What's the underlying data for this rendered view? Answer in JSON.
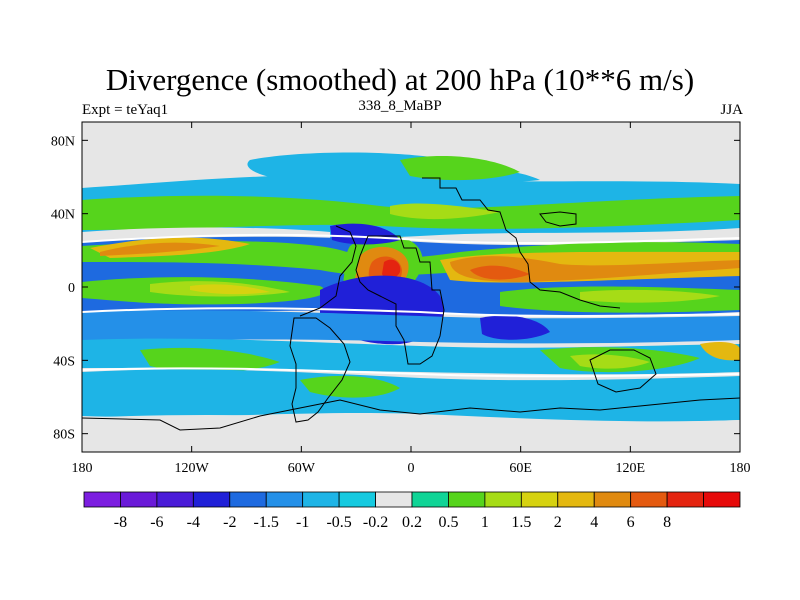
{
  "chart_data": {
    "type": "heatmap",
    "title": "Divergence (smoothed) at 200 hPa (10**6 m/s)",
    "left_subtitle": "Expt = teYaq1",
    "center_subtitle": "338_8_MaBP",
    "right_subtitle": "JJA",
    "x_ticks": [
      {
        "value": -180,
        "label": "180"
      },
      {
        "value": -120,
        "label": "120W"
      },
      {
        "value": -60,
        "label": "60W"
      },
      {
        "value": 0,
        "label": "0"
      },
      {
        "value": 60,
        "label": "60E"
      },
      {
        "value": 120,
        "label": "120E"
      },
      {
        "value": 180,
        "label": "180"
      }
    ],
    "y_ticks": [
      {
        "value": 80,
        "label": "80N"
      },
      {
        "value": 40,
        "label": "40N"
      },
      {
        "value": 0,
        "label": "0"
      },
      {
        "value": -40,
        "label": "40S"
      },
      {
        "value": -80,
        "label": "80S"
      }
    ],
    "xlim": [
      -180,
      180
    ],
    "ylim": [
      -90,
      90
    ],
    "colorbar": {
      "colors": [
        "#7c1ee0",
        "#6a1ad8",
        "#4a1bd8",
        "#2020d8",
        "#1e6ae0",
        "#2490e8",
        "#1eb4e6",
        "#16cae0",
        "#e6e6e6",
        "#10d496",
        "#56d41c",
        "#a6dc16",
        "#d6d210",
        "#e4b810",
        "#e08a10",
        "#e45a10",
        "#e42410",
        "#e60a0a"
      ],
      "labels": [
        "-8",
        "-6",
        "-4",
        "-2",
        "-1.5",
        "-1",
        "-0.5",
        "-0.2",
        "0.2",
        "0.5",
        "1",
        "1.5",
        "2",
        "4",
        "6",
        "8"
      ]
    },
    "features": [
      {
        "lon": -100,
        "lat": 25,
        "value": 1.5,
        "desc": "subtropical positive band"
      },
      {
        "lon": -15,
        "lat": 18,
        "value": 6,
        "desc": "West Africa maximum"
      },
      {
        "lon": -12,
        "lat": -20,
        "value": -4,
        "desc": "South Atlantic minimum"
      },
      {
        "lon": 45,
        "lat": 5,
        "value": 4,
        "desc": "East Africa / Indian maximum"
      },
      {
        "lon": 60,
        "lat": -25,
        "value": -2,
        "desc": "Indian Ocean minimum"
      }
    ]
  }
}
